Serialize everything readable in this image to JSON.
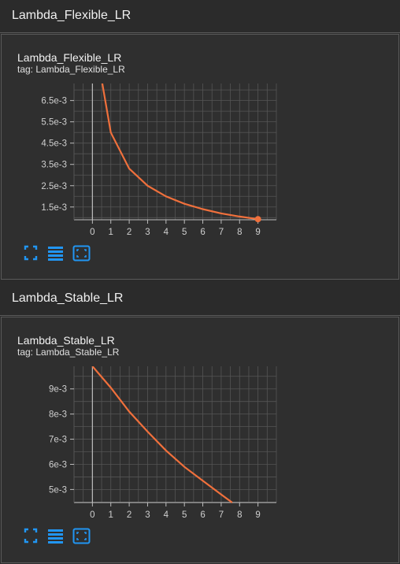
{
  "sections": [
    {
      "header": "Lambda_Flexible_LR",
      "card": {
        "title": "Lambda_Flexible_LR",
        "tag": "tag: Lambda_Flexible_LR"
      },
      "chart_data": {
        "type": "line",
        "title": "Lambda_Flexible_LR",
        "x": [
          0.5,
          1,
          2,
          3,
          4,
          5,
          6,
          7,
          8,
          9
        ],
        "series": [
          {
            "values": [
              0.0075,
              0.005,
              0.0033,
              0.0025,
              0.002,
              0.00165,
              0.0014,
              0.0012,
              0.00105,
              0.00093
            ]
          }
        ],
        "xlim": [
          -1,
          10
        ],
        "ylim": [
          0.0009,
          0.0073
        ],
        "xticks": [
          0,
          1,
          2,
          3,
          4,
          5,
          6,
          7,
          8,
          9
        ],
        "yticks": [
          0.0015,
          0.0025,
          0.0035,
          0.0045,
          0.0055,
          0.0065
        ],
        "ytick_labels": [
          "1.5e-3",
          "2.5e-3",
          "3.5e-3",
          "4.5e-3",
          "5.5e-3",
          "6.5e-3"
        ],
        "grid": true,
        "line_color": "#f0703c",
        "marker_last": true
      }
    },
    {
      "header": "Lambda_Stable_LR",
      "card": {
        "title": "Lambda_Stable_LR",
        "tag": "tag: Lambda_Stable_LR"
      },
      "chart_data": {
        "type": "line",
        "title": "Lambda_Stable_LR",
        "x": [
          0,
          1,
          2,
          3,
          4,
          5,
          6,
          7,
          7.6
        ],
        "series": [
          {
            "values": [
              0.0099,
              0.00905,
              0.0081,
              0.0073,
              0.00655,
              0.0059,
              0.00535,
              0.0048,
              0.00448
            ]
          }
        ],
        "xlim": [
          -1,
          10
        ],
        "ylim": [
          0.00448,
          0.0099
        ],
        "xticks": [
          0,
          1,
          2,
          3,
          4,
          5,
          6,
          7,
          8,
          9
        ],
        "yticks": [
          0.005,
          0.006,
          0.007,
          0.008,
          0.009
        ],
        "ytick_labels": [
          "5e-3",
          "6e-3",
          "7e-3",
          "8e-3",
          "9e-3"
        ],
        "grid": true,
        "line_color": "#f0703c",
        "marker_last": false
      }
    }
  ],
  "toolbar": {
    "icons": [
      "fullscreen-icon",
      "data-table-icon",
      "fit-domain-icon"
    ],
    "accent": "#2196f3"
  },
  "colors": {
    "background": "#2b2b2b",
    "card": "#2f2f2f",
    "grid": "#555555",
    "axis": "#bdbdbd"
  }
}
